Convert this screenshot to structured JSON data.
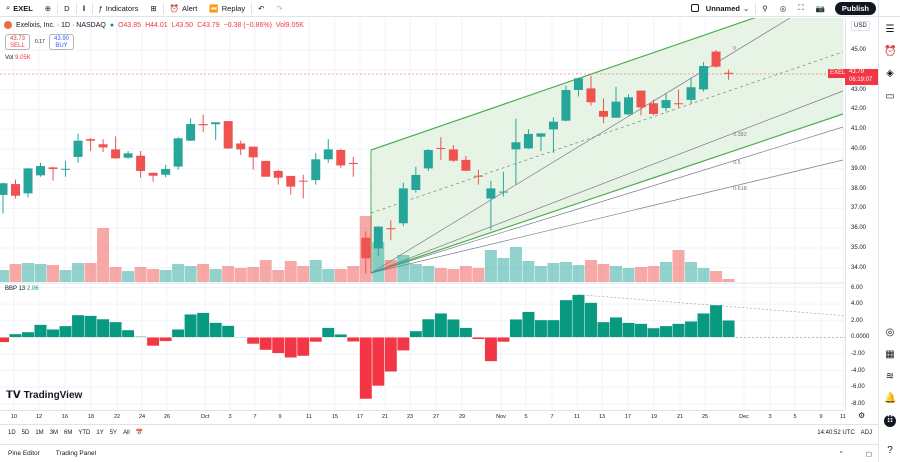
{
  "toolbar": {
    "symbol": "EXEL",
    "interval": "D",
    "indicators": "Indicators",
    "alert": "Alert",
    "replay": "Replay",
    "layout_name": "Unnamed",
    "publish": "Publish"
  },
  "legend": {
    "title": "Exelixis, Inc. · 1D · NASDAQ",
    "open": "O43.85",
    "high": "H44.01",
    "low": "L43.50",
    "close": "C43.79",
    "change": "−0.38 (−0.86%)",
    "volume": "Vol9.05K"
  },
  "trade": {
    "sell_price": "43.73",
    "sell_label": "SELL",
    "spread": "0.17",
    "buy_price": "43.90",
    "buy_label": "BUY"
  },
  "volume_legend": {
    "label": "Vol",
    "value": "9.05K"
  },
  "bbp_legend": {
    "label": "BBP 13",
    "value": "2.06"
  },
  "price_axis": {
    "currency": "USD",
    "ticks": [
      "45.00",
      "43.00",
      "42.00",
      "41.00",
      "40.00",
      "39.00",
      "38.00",
      "37.00",
      "36.00",
      "35.00",
      "34.00"
    ]
  },
  "bbp_axis": {
    "ticks": [
      "6.00",
      "4.00",
      "2.00",
      "0.0000",
      "-2.00",
      "-4.00",
      "-6.00",
      "-8.00"
    ]
  },
  "last_price": {
    "symbol": "EXEL",
    "price": "43.79",
    "countdown": "06:19:07"
  },
  "fib_levels": [
    "0",
    "0.382",
    "0.5",
    "0.618"
  ],
  "time_axis": [
    "10",
    "12",
    "16",
    "18",
    "22",
    "24",
    "26",
    "Oct",
    "3",
    "7",
    "9",
    "11",
    "15",
    "17",
    "21",
    "23",
    "27",
    "29",
    "Nov",
    "5",
    "7",
    "11",
    "13",
    "17",
    "19",
    "21",
    "25",
    "Dec",
    "3",
    "5",
    "9",
    "11"
  ],
  "ranges": [
    "1D",
    "5D",
    "1M",
    "3M",
    "6M",
    "YTD",
    "1Y",
    "5Y",
    "All"
  ],
  "clock": "14:40:52 UTC",
  "adj": "ADJ",
  "bottom_tabs": [
    "Pine Editor",
    "Trading Panel"
  ],
  "brand": "TradingView",
  "colors": {
    "up": "#26a69a",
    "down": "#ef5350",
    "bbp_up": "#089981",
    "bbp_down": "#f23645",
    "channel": "#4caf50",
    "channel_fill": "#e3f2e1"
  },
  "chart_data": {
    "type": "candlestick",
    "ohlc": [
      [
        37.68,
        38.3,
        36.75,
        38.27
      ],
      [
        38.23,
        38.45,
        37.5,
        37.64
      ],
      [
        37.76,
        39.05,
        37.55,
        39.02
      ],
      [
        38.67,
        39.3,
        38.6,
        39.14
      ],
      [
        39.07,
        39.1,
        38.4,
        38.99
      ],
      [
        38.98,
        39.4,
        38.6,
        39.0
      ],
      [
        39.6,
        40.77,
        39.3,
        40.42
      ],
      [
        40.5,
        40.55,
        39.9,
        40.42
      ],
      [
        40.24,
        40.5,
        39.85,
        40.08
      ],
      [
        39.98,
        40.64,
        39.5,
        39.53
      ],
      [
        39.56,
        39.9,
        39.5,
        39.78
      ],
      [
        39.66,
        39.9,
        38.55,
        38.89
      ],
      [
        38.8,
        38.8,
        38.35,
        38.65
      ],
      [
        38.7,
        39.2,
        38.57,
        38.99
      ],
      [
        39.11,
        40.6,
        38.95,
        40.54
      ],
      [
        40.42,
        41.55,
        40.4,
        41.26
      ],
      [
        41.26,
        41.74,
        40.85,
        41.2
      ],
      [
        41.25,
        41.35,
        40.45,
        41.35
      ],
      [
        41.41,
        41.41,
        40.0,
        40.03
      ],
      [
        40.28,
        40.42,
        39.7,
        39.98
      ],
      [
        40.12,
        40.12,
        38.95,
        39.58
      ],
      [
        39.4,
        39.4,
        38.6,
        38.6
      ],
      [
        38.89,
        38.95,
        38.2,
        38.55
      ],
      [
        38.64,
        38.64,
        37.7,
        38.1
      ],
      [
        38.4,
        38.7,
        37.5,
        38.35
      ],
      [
        38.43,
        39.8,
        38.2,
        39.48
      ],
      [
        39.48,
        40.5,
        39.3,
        39.98
      ],
      [
        39.95,
        40.0,
        39.05,
        39.17
      ],
      [
        39.3,
        39.6,
        38.6,
        39.24
      ],
      [
        35.52,
        35.84,
        33.7,
        34.48
      ],
      [
        34.98,
        36.1,
        34.6,
        36.08
      ],
      [
        36.0,
        36.4,
        35.4,
        35.99
      ],
      [
        36.25,
        38.3,
        36.1,
        38.01
      ],
      [
        37.93,
        39.1,
        37.8,
        38.69
      ],
      [
        39.02,
        40.0,
        38.9,
        39.95
      ],
      [
        40.05,
        40.6,
        39.45,
        40.0
      ],
      [
        39.98,
        40.2,
        39.35,
        39.41
      ],
      [
        39.45,
        39.65,
        38.9,
        38.9
      ],
      [
        38.65,
        38.95,
        38.2,
        38.63
      ],
      [
        37.5,
        38.4,
        35.9,
        38.01
      ],
      [
        37.8,
        38.85,
        37.6,
        37.85
      ],
      [
        39.98,
        41.53,
        38.2,
        40.34
      ],
      [
        40.03,
        41.0,
        40.0,
        40.76
      ],
      [
        40.62,
        40.8,
        39.9,
        40.79
      ],
      [
        40.99,
        41.6,
        39.8,
        41.38
      ],
      [
        41.43,
        43.2,
        41.4,
        42.98
      ],
      [
        42.98,
        43.6,
        42.65,
        43.57
      ],
      [
        43.06,
        43.7,
        42.2,
        42.36
      ],
      [
        41.92,
        42.56,
        41.3,
        41.63
      ],
      [
        41.58,
        43.14,
        41.58,
        42.39
      ],
      [
        41.75,
        42.75,
        41.7,
        42.61
      ],
      [
        42.95,
        42.95,
        41.7,
        42.1
      ],
      [
        42.31,
        42.5,
        41.7,
        41.77
      ],
      [
        42.07,
        42.8,
        41.9,
        42.47
      ],
      [
        42.31,
        43.0,
        42.1,
        42.26
      ],
      [
        42.48,
        43.6,
        42.3,
        43.12
      ],
      [
        43.01,
        44.4,
        42.9,
        44.19
      ],
      [
        44.92,
        45.0,
        44.1,
        44.16
      ],
      [
        43.85,
        44.01,
        43.5,
        43.79
      ]
    ],
    "volume_relative": [
      12,
      18,
      19,
      18,
      17,
      12,
      19,
      19,
      54,
      15,
      11,
      15,
      13,
      12,
      18,
      16,
      18,
      13,
      16,
      14,
      15,
      22,
      12,
      21,
      16,
      22,
      13,
      13,
      16,
      66,
      40,
      22,
      27,
      18,
      16,
      14,
      13,
      16,
      14,
      32,
      24,
      35,
      21,
      16,
      19,
      20,
      17,
      22,
      18,
      16,
      14,
      15,
      16,
      20,
      32,
      20,
      14,
      11,
      3
    ],
    "bbp": [
      -0.6,
      0.4,
      0.64,
      1.53,
      0.96,
      1.37,
      2.69,
      2.61,
      2.2,
      1.85,
      0.88,
      0.1,
      -1.04,
      -0.48,
      0.96,
      2.77,
      2.97,
      1.77,
      1.41,
      0.0,
      -0.8,
      -1.53,
      -1.93,
      -2.45,
      -2.25,
      -0.56,
      1.16,
      0.36,
      -0.52,
      -7.43,
      -5.86,
      -4.14,
      -1.6,
      0.76,
      2.2,
      2.9,
      2.17,
      1.16,
      -0.24,
      -2.9,
      -0.56,
      2.17,
      3.09,
      2.09,
      2.09,
      4.5,
      5.14,
      4.18,
      1.85,
      2.41,
      1.77,
      1.65,
      1.12,
      1.37,
      1.65,
      1.93,
      2.89,
      3.9,
      2.06
    ],
    "price_range": [
      33.5,
      46
    ],
    "bbp_range": [
      -8.5,
      6.5
    ],
    "grid": true
  }
}
